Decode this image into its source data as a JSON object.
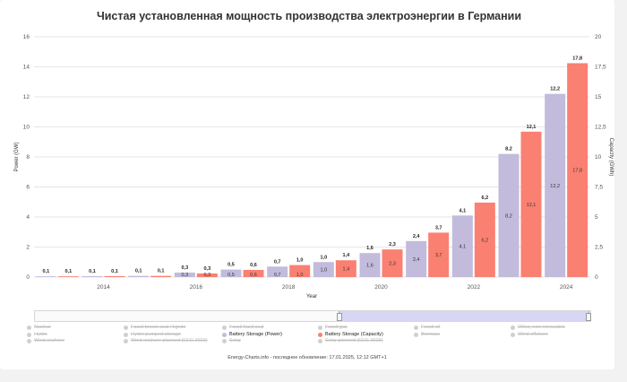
{
  "chart_data": {
    "type": "bar",
    "title": "Чистая установленная мощность производства электроэнергии в Германии",
    "xlabel": "Year",
    "ylabel_left": "Power (GW)",
    "ylabel_right": "Capacity (GWh)",
    "ylim_left": [
      0,
      16
    ],
    "ylim_right": [
      0,
      20
    ],
    "left_ticks": [
      "0",
      "2",
      "4",
      "6",
      "8",
      "10",
      "12",
      "14",
      "16"
    ],
    "right_ticks": [
      "0",
      "2,5",
      "5",
      "7,5",
      "10",
      "12,5",
      "15",
      "17,5",
      "20"
    ],
    "x_tick_labels": [
      "2014",
      "2016",
      "2018",
      "2020",
      "2022",
      "2024"
    ],
    "categories": [
      "2013",
      "2014",
      "2015",
      "2016",
      "2017",
      "2018",
      "2019",
      "2020",
      "2021",
      "2022",
      "2023",
      "2024"
    ],
    "series": [
      {
        "name": "Battery Storage (Power)",
        "axis": "left",
        "color": "#c2bbdc",
        "values": [
          0.05,
          0.06,
          0.08,
          0.3,
          0.5,
          0.7,
          1.0,
          1.6,
          2.4,
          4.1,
          8.2,
          12.2
        ],
        "labels": [
          "0,1",
          "0,1",
          "0,1",
          "0,3",
          "0,5",
          "0,7",
          "1,0",
          "1,6",
          "2,4",
          "4,1",
          "8,2",
          "12,2"
        ],
        "inner_labels": [
          "",
          "",
          "",
          "0,3",
          "0,5",
          "0,7",
          "1,0",
          "1,6",
          "2,4",
          "4,1",
          "8,2",
          "12,2"
        ]
      },
      {
        "name": "Battery Storage (Capacity)",
        "axis": "right",
        "color": "#fa8072",
        "values": [
          0.06,
          0.08,
          0.1,
          0.3,
          0.6,
          1.0,
          1.4,
          2.3,
          3.7,
          6.2,
          12.1,
          17.8
        ],
        "labels": [
          "0,1",
          "0,1",
          "0,1",
          "0,3",
          "0,6",
          "1,0",
          "1,4",
          "2,3",
          "3,7",
          "6,2",
          "12,1",
          "17,8"
        ],
        "inner_labels": [
          "",
          "",
          "",
          "0,3",
          "0,6",
          "1,0",
          "1,4",
          "2,3",
          "3,7",
          "6,2",
          "12,1",
          "17,8"
        ]
      }
    ]
  },
  "legend": [
    {
      "label": "Nuclear",
      "active": false
    },
    {
      "label": "Fossil brown coal / lignite",
      "active": false
    },
    {
      "label": "Fossil hard coal",
      "active": false
    },
    {
      "label": "Fossil gas",
      "active": false
    },
    {
      "label": "Fossil oil",
      "active": false
    },
    {
      "label": "Other, non-renewable",
      "active": false
    },
    {
      "label": "Hydro",
      "active": false
    },
    {
      "label": "Hydro pumped storage",
      "active": false
    },
    {
      "label": "Battery Storage (Power)",
      "active": true,
      "color": "#c2bbdc"
    },
    {
      "label": "Battery Storage (Capacity)",
      "active": true,
      "color": "#fa8072"
    },
    {
      "label": "Biomass",
      "active": false
    },
    {
      "label": "Wind offshore",
      "active": false
    },
    {
      "label": "Wind onshore",
      "active": false
    },
    {
      "label": "Wind onshore planned (EEG 2023)",
      "active": false
    },
    {
      "label": "Solar",
      "active": false
    },
    {
      "label": "Solar planned (EEG 2023)",
      "active": false
    }
  ],
  "footer": "Energy-Charts.info - последнее обновление: 17.01.2025, 12:12 GMT+1"
}
